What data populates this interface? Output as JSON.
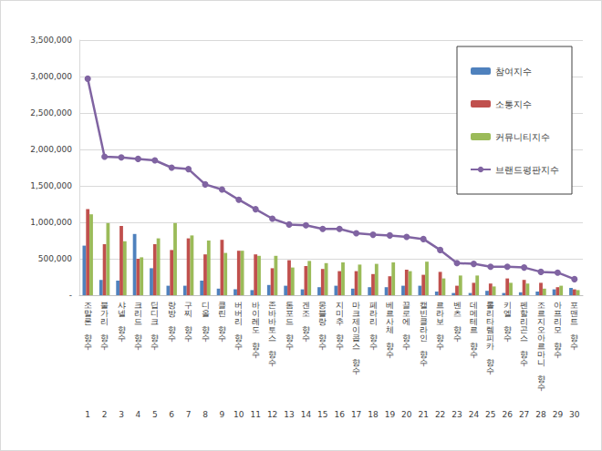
{
  "chart_data": {
    "type": "bar",
    "categories": [
      "조말론 향수",
      "불가리 향수",
      "샤넬 향수",
      "크리드 향수",
      "딥디크 향수",
      "랑방 향수",
      "구찌 향수",
      "디올 향수",
      "클린 향수",
      "버버리 향수",
      "바이레도 향수",
      "존바바토스 향수",
      "톰포드 향수",
      "겐조 향수",
      "몽블랑 향수",
      "지미추 향수",
      "마크제이콥스 향수",
      "페라리 향수",
      "베르사체 향수",
      "끌로에 향수",
      "캘빈클라인 향수",
      "르라보 향수",
      "벤츠 향수",
      "데메테르 향수",
      "롤리타렘피카 향수",
      "키엘 향수",
      "펜할리곤스 향수",
      "조르지오아르마니 향수",
      "아프리모 향수",
      "포맨트 향수"
    ],
    "ranks": [
      1,
      2,
      3,
      4,
      5,
      6,
      7,
      8,
      9,
      10,
      11,
      12,
      13,
      14,
      15,
      16,
      17,
      18,
      19,
      20,
      21,
      22,
      23,
      24,
      25,
      26,
      27,
      28,
      29,
      30
    ],
    "series": [
      {
        "name": "참여지수",
        "type": "bar",
        "color": "#4f81bd",
        "values": [
          680000,
          210000,
          200000,
          840000,
          370000,
          130000,
          130000,
          200000,
          90000,
          80000,
          70000,
          140000,
          130000,
          80000,
          110000,
          130000,
          90000,
          110000,
          110000,
          130000,
          130000,
          50000,
          30000,
          30000,
          60000,
          30000,
          40000,
          50000,
          80000,
          100000
        ]
      },
      {
        "name": "소통지수",
        "type": "bar",
        "color": "#c0504d",
        "values": [
          1180000,
          700000,
          950000,
          500000,
          700000,
          620000,
          780000,
          560000,
          760000,
          610000,
          560000,
          370000,
          480000,
          400000,
          360000,
          330000,
          330000,
          290000,
          260000,
          350000,
          280000,
          320000,
          130000,
          170000,
          160000,
          230000,
          210000,
          170000,
          110000,
          80000
        ]
      },
      {
        "name": "커뮤니티지수",
        "type": "bar",
        "color": "#9bbb59",
        "values": [
          1110000,
          990000,
          740000,
          520000,
          780000,
          990000,
          820000,
          750000,
          580000,
          610000,
          540000,
          540000,
          380000,
          470000,
          440000,
          450000,
          420000,
          430000,
          450000,
          330000,
          460000,
          230000,
          270000,
          270000,
          120000,
          170000,
          160000,
          90000,
          130000,
          70000
        ]
      },
      {
        "name": "브랜드평판지수",
        "type": "line",
        "color": "#8064a2",
        "marker": "circle",
        "line_style": "solid",
        "values": [
          2970000,
          1900000,
          1890000,
          1870000,
          1850000,
          1750000,
          1730000,
          1520000,
          1450000,
          1310000,
          1180000,
          1050000,
          970000,
          960000,
          910000,
          910000,
          850000,
          830000,
          820000,
          800000,
          770000,
          620000,
          440000,
          430000,
          390000,
          390000,
          380000,
          320000,
          310000,
          220000
        ]
      }
    ],
    "ylim": [
      0,
      3500000
    ],
    "yticks": [
      {
        "value": 0,
        "label": "-"
      },
      {
        "value": 500000,
        "label": "500,000"
      },
      {
        "value": 1000000,
        "label": "1,000,000"
      },
      {
        "value": 1500000,
        "label": "1,500,000"
      },
      {
        "value": 2000000,
        "label": "2,000,000"
      },
      {
        "value": 2500000,
        "label": "2,500,000"
      },
      {
        "value": 3000000,
        "label": "3,000,000"
      },
      {
        "value": 3500000,
        "label": "3,500,000"
      }
    ],
    "grid": true,
    "legend": "upper right"
  }
}
